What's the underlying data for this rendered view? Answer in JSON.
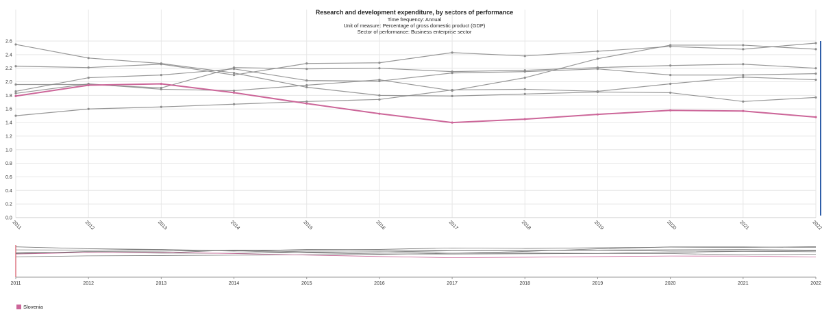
{
  "chart_data": {
    "type": "line",
    "title": "Research and development expenditure, by sectors of performance",
    "subtitles": [
      "Time frequency:  Annual",
      "Unit of measure:  Percentage of gross domestic product (GDP)",
      "Sector of performance:  Business enterprise sector"
    ],
    "x": [
      "2011",
      "2012",
      "2013",
      "2014",
      "2015",
      "2016",
      "2017",
      "2018",
      "2019",
      "2020",
      "2021",
      "2022"
    ],
    "yticks": [
      "0.0",
      "0.2",
      "0.4",
      "0.6",
      "0.8",
      "1.0",
      "1.2",
      "1.4",
      "1.6",
      "1.8",
      "2.0",
      "2.2",
      "2.4",
      "2.6"
    ],
    "ylim": [
      0,
      2.6
    ],
    "grid": true,
    "legend_position": "bottom-left",
    "highlight_color": "#cc6699",
    "background_series_color": "#8c8c8c",
    "series": [
      {
        "name": "Slovenia",
        "highlight": true,
        "values": [
          1.79,
          1.95,
          1.97,
          1.84,
          1.68,
          1.53,
          1.4,
          1.45,
          1.52,
          1.58,
          1.57,
          1.48
        ]
      },
      {
        "values": [
          2.55,
          2.35,
          2.27,
          2.13,
          1.92,
          1.8,
          1.79,
          1.82,
          1.85,
          1.84,
          1.71,
          1.77
        ]
      },
      {
        "values": [
          2.23,
          2.21,
          2.26,
          2.1,
          2.27,
          2.28,
          2.43,
          2.38,
          2.45,
          2.52,
          2.48,
          2.57
        ]
      },
      {
        "values": [
          1.96,
          1.96,
          1.91,
          2.21,
          2.19,
          2.2,
          2.15,
          2.17,
          2.21,
          2.24,
          2.26,
          2.2
        ]
      },
      {
        "values": [
          1.86,
          2.06,
          2.1,
          2.19,
          2.02,
          2.01,
          2.13,
          2.15,
          2.19,
          2.1,
          2.1,
          2.12
        ]
      },
      {
        "values": [
          1.83,
          1.97,
          1.89,
          1.87,
          1.95,
          2.03,
          1.87,
          2.06,
          2.34,
          2.54,
          2.54,
          2.48
        ]
      },
      {
        "values": [
          1.5,
          1.6,
          1.63,
          1.67,
          1.71,
          1.74,
          1.88,
          1.89,
          1.86,
          1.97,
          2.07,
          2.03
        ]
      }
    ]
  },
  "legend": {
    "label": "Slovenia"
  }
}
